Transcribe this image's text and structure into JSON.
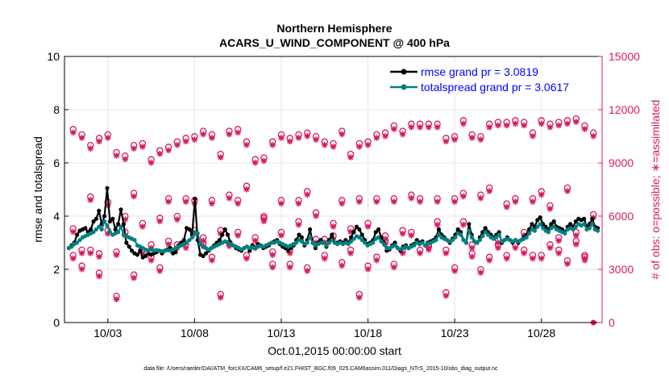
{
  "chart_data": {
    "type": "line",
    "title": "Northern Hemisphere",
    "subtitle": "ACARS_U_WIND_COMPONENT @ 400 hPa",
    "xlabel": "Oct.01,2015 00:00:00 start",
    "ylabel_left": "rmse and totalspread",
    "ylabel_right": "# of obs: o=possible; ∗=assimilated",
    "footer": "data file: /Users/raeder/DAI/ATM_forcXX/CAM6_setup/f.e21.FHIST_BGC.f09_025.CAM6assim.011/Diags_NTrS_2015-10/obs_diag_output.nc",
    "xlim": [
      0.5,
      31.5
    ],
    "ylim_left": [
      0,
      10
    ],
    "ylim_right": [
      0,
      15000
    ],
    "x_ticks": [
      3,
      8,
      13,
      18,
      23,
      28
    ],
    "x_tick_labels": [
      "10/03",
      "10/08",
      "10/13",
      "10/18",
      "10/23",
      "10/28"
    ],
    "y_left_ticks": [
      "0",
      "2",
      "4",
      "6",
      "8",
      "10"
    ],
    "y_right_ticks": [
      "0",
      "3000",
      "6000",
      "9000",
      "12000",
      "15000"
    ],
    "colors": {
      "rmse": "#000000",
      "spread": "#008080",
      "obs": "#d81b60",
      "legend_text": "#0000ff"
    },
    "series": [
      {
        "name": "rmse grand pr = 3.0819",
        "values": [
          2.8,
          2.9,
          3.0,
          3.3,
          3.45,
          3.5,
          3.55,
          3.4,
          3.5,
          3.8,
          3.9,
          4.2,
          3.7,
          4.0,
          5.05,
          3.8,
          3.9,
          3.5,
          3.7,
          4.25,
          3.7,
          3.0,
          2.85,
          2.7,
          2.6,
          2.55,
          2.7,
          2.45,
          2.5,
          2.6,
          2.55,
          2.6,
          2.65,
          2.7,
          2.6,
          2.7,
          2.75,
          2.8,
          2.6,
          2.65,
          2.9,
          3.0,
          3.1,
          3.55,
          3.5,
          3.3,
          4.65,
          3.1,
          2.55,
          2.5,
          2.6,
          2.7,
          2.8,
          2.9,
          3.0,
          3.1,
          3.3,
          3.5,
          3.3,
          3.0,
          2.9,
          2.8,
          2.75,
          2.7,
          2.8,
          2.85,
          2.7,
          2.9,
          2.8,
          2.95,
          2.9,
          2.8,
          2.85,
          2.9,
          3.0,
          3.05,
          3.1,
          2.95,
          2.85,
          2.8,
          2.7,
          2.8,
          2.9,
          3.1,
          3.3,
          3.2,
          2.9,
          3.1,
          3.5,
          3.0,
          2.8,
          3.0,
          3.1,
          3.0,
          2.85,
          3.1,
          3.3,
          3.0,
          3.0,
          3.05,
          3.0,
          3.1,
          3.0,
          3.2,
          3.4,
          3.6,
          3.5,
          3.3,
          3.1,
          2.95,
          3.0,
          3.1,
          3.4,
          3.5,
          3.2,
          3.0,
          2.7,
          2.75,
          2.9,
          3.0,
          2.8,
          2.7,
          2.85,
          2.9,
          2.8,
          2.9,
          2.95,
          3.1,
          3.0,
          3.05,
          2.9,
          3.0,
          3.05,
          3.1,
          3.2,
          3.5,
          3.3,
          3.2,
          3.1,
          3.0,
          3.15,
          3.3,
          3.5,
          3.4,
          3.1,
          3.0,
          3.7,
          3.3,
          3.05,
          3.0,
          3.2,
          3.4,
          3.55,
          3.4,
          3.3,
          3.2,
          3.3,
          3.4,
          3.0,
          3.1,
          3.2,
          3.1,
          3.0,
          3.1,
          3.0,
          3.1,
          3.2,
          3.3,
          3.5,
          3.7,
          3.6,
          3.85,
          3.95,
          3.7,
          3.6,
          3.5,
          3.7,
          3.8,
          3.6,
          3.55,
          3.5,
          3.4,
          3.6,
          3.7,
          3.6,
          3.8,
          3.9,
          3.85,
          3.9,
          3.6,
          3.7,
          3.9,
          3.6,
          3.55
        ]
      },
      {
        "name": "totalspread grand pr = 3.0617",
        "values": [
          2.8,
          2.85,
          2.95,
          3.0,
          3.1,
          3.2,
          3.25,
          3.3,
          3.35,
          3.4,
          3.5,
          3.6,
          3.5,
          3.8,
          3.65,
          3.4,
          3.3,
          3.35,
          3.4,
          3.6,
          3.3,
          3.25,
          3.2,
          3.15,
          3.1,
          2.9,
          2.85,
          2.8,
          2.75,
          2.7,
          2.75,
          2.7,
          2.72,
          2.7,
          2.68,
          2.7,
          2.72,
          2.7,
          2.75,
          2.8,
          2.85,
          2.9,
          2.95,
          3.0,
          3.1,
          3.2,
          3.4,
          3.35,
          2.95,
          2.85,
          2.8,
          2.75,
          2.8,
          2.85,
          2.9,
          2.95,
          3.0,
          3.05,
          3.0,
          2.95,
          2.9,
          2.85,
          2.8,
          2.75,
          2.8,
          2.85,
          2.8,
          2.82,
          2.8,
          2.85,
          2.88,
          2.85,
          2.9,
          2.95,
          3.0,
          3.0,
          3.05,
          3.0,
          2.95,
          2.9,
          2.85,
          2.9,
          2.95,
          3.0,
          3.1,
          3.05,
          2.95,
          3.0,
          3.2,
          3.0,
          2.9,
          2.95,
          3.0,
          3.0,
          2.9,
          3.0,
          3.1,
          3.0,
          2.95,
          3.0,
          2.95,
          3.0,
          2.95,
          3.05,
          3.15,
          3.25,
          3.2,
          3.1,
          3.0,
          2.9,
          2.95,
          3.0,
          3.15,
          3.2,
          3.05,
          2.95,
          2.8,
          2.8,
          2.85,
          2.9,
          2.8,
          2.75,
          2.8,
          2.85,
          2.8,
          2.85,
          2.9,
          3.0,
          2.95,
          3.0,
          2.9,
          2.95,
          3.0,
          3.05,
          3.1,
          3.3,
          3.2,
          3.15,
          3.1,
          3.05,
          3.1,
          3.2,
          3.35,
          3.3,
          3.1,
          3.0,
          3.45,
          3.2,
          3.05,
          3.0,
          3.1,
          3.25,
          3.4,
          3.3,
          3.2,
          3.15,
          3.2,
          3.3,
          3.05,
          3.1,
          3.15,
          3.1,
          3.05,
          3.1,
          3.05,
          3.1,
          3.15,
          3.2,
          3.35,
          3.5,
          3.45,
          3.6,
          3.7,
          3.55,
          3.45,
          3.4,
          3.55,
          3.6,
          3.5,
          3.45,
          3.4,
          3.35,
          3.5,
          3.55,
          3.5,
          3.6,
          3.7,
          3.65,
          3.7,
          3.5,
          3.55,
          3.7,
          3.5,
          3.45
        ]
      }
    ],
    "obs_possible_x": [
      1,
      1.5,
      2,
      2.5,
      3,
      3.5,
      4,
      4.5,
      5,
      5.5,
      6,
      6.5,
      7,
      7.5,
      8,
      8.5,
      9,
      9.5,
      10,
      10.5,
      11,
      11.5,
      12,
      12.5,
      13,
      13.5,
      14,
      14.5,
      15,
      15.5,
      16,
      16.5,
      17,
      17.5,
      18,
      18.5,
      19,
      19.5,
      20,
      20.5,
      21,
      21.5,
      22,
      22.5,
      23,
      23.5,
      24,
      24.5,
      25,
      25.5,
      26,
      26.5,
      27,
      27.5,
      28,
      28.5,
      29,
      29.5,
      30,
      30.5,
      31
    ],
    "obs_high": [
      10800,
      10500,
      9900,
      10300,
      10500,
      9500,
      9300,
      9900,
      10000,
      9100,
      9600,
      9800,
      10100,
      10300,
      10400,
      10700,
      10500,
      9400,
      10700,
      10800,
      10100,
      9100,
      9200,
      10100,
      10500,
      10300,
      10500,
      10600,
      10400,
      10100,
      10000,
      10700,
      9400,
      10000,
      10100,
      10500,
      10600,
      11000,
      10700,
      11100,
      11100,
      11100,
      11100,
      10300,
      10400,
      11300,
      10500,
      10400,
      11100,
      11200,
      11200,
      11300,
      11200,
      10600,
      11300,
      11100,
      11200,
      11300,
      11400,
      11000,
      10600
    ],
    "obs_mid": [
      5200,
      4000,
      7000,
      3800,
      6700,
      3900,
      5900,
      7200,
      5500,
      3600,
      5800,
      6900,
      5900,
      6900,
      6800,
      4700,
      6800,
      5100,
      7100,
      6800,
      7600,
      4300,
      5800,
      3900,
      6800,
      4000,
      6800,
      7300,
      6100,
      3700,
      5500,
      6800,
      4000,
      6900,
      5500,
      6900,
      4800,
      6900,
      4000,
      7100,
      6900,
      4200,
      6900,
      4000,
      6900,
      7200,
      4300,
      7100,
      7500,
      4300,
      6600,
      6900,
      4000,
      6900,
      7300,
      6500,
      4000,
      7500,
      5000,
      3700,
      6000
    ],
    "obs_low": [
      3700,
      3100,
      4000,
      2700,
      5100,
      1400,
      5000,
      2600,
      4000,
      4300,
      3000,
      4500,
      4300,
      4300,
      5100,
      4400,
      3600,
      1500,
      4400,
      5000,
      3700,
      4700,
      5900,
      3200,
      5000,
      3200,
      5600,
      3000,
      4600,
      4600,
      4800,
      3300,
      5200,
      1500,
      3100,
      3600,
      4500,
      3200,
      5100,
      5000,
      4000,
      4300,
      5600,
      1600,
      3000,
      5600,
      3800,
      2900,
      3600,
      4600,
      3700,
      4300,
      5000,
      3700,
      3700,
      4300,
      4700,
      3400,
      4500,
      3600,
      0
    ]
  }
}
